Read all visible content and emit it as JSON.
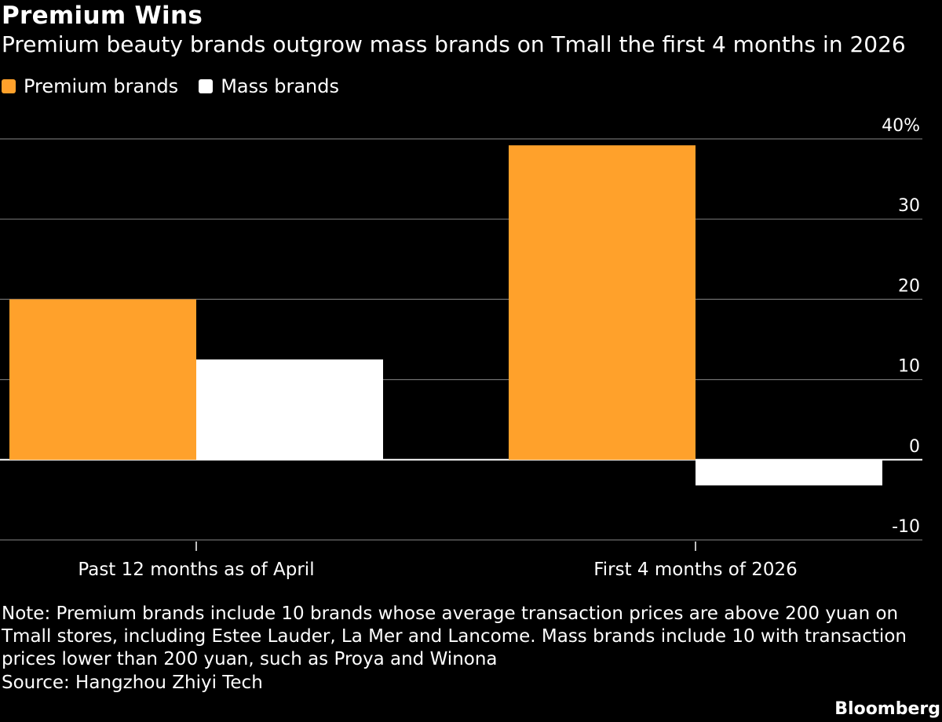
{
  "chart_data": {
    "type": "bar",
    "title": "Premium Wins",
    "subtitle": "Premium beauty brands outgrow mass brands on Tmall the first 4 months in 2026",
    "categories": [
      "Past 12 months as of April",
      "First 4 months of 2026"
    ],
    "series": [
      {
        "name": "Premium brands",
        "color": "#ffa12b",
        "values": [
          20,
          39.2
        ]
      },
      {
        "name": "Mass brands",
        "color": "#ffffff",
        "values": [
          12.5,
          -3.2
        ]
      }
    ],
    "y_ticks": [
      40,
      30,
      20,
      10,
      0,
      -10
    ],
    "y_tick_labels": [
      "40%",
      "30",
      "20",
      "10",
      "0",
      "-10"
    ],
    "ylim": [
      -10,
      40
    ],
    "grid": true,
    "legend_position": "top-left",
    "y_axis_position": "right"
  },
  "note": "Note: Premium brands include 10 brands whose average transaction prices are above 200 yuan on Tmall stores, including Estee Lauder, La Mer and Lancome. Mass brands include 10 with transaction prices lower than 200 yuan, such as Proya and Winona",
  "source": "Source: Hangzhou Zhiyi Tech",
  "brand": "Bloomberg"
}
